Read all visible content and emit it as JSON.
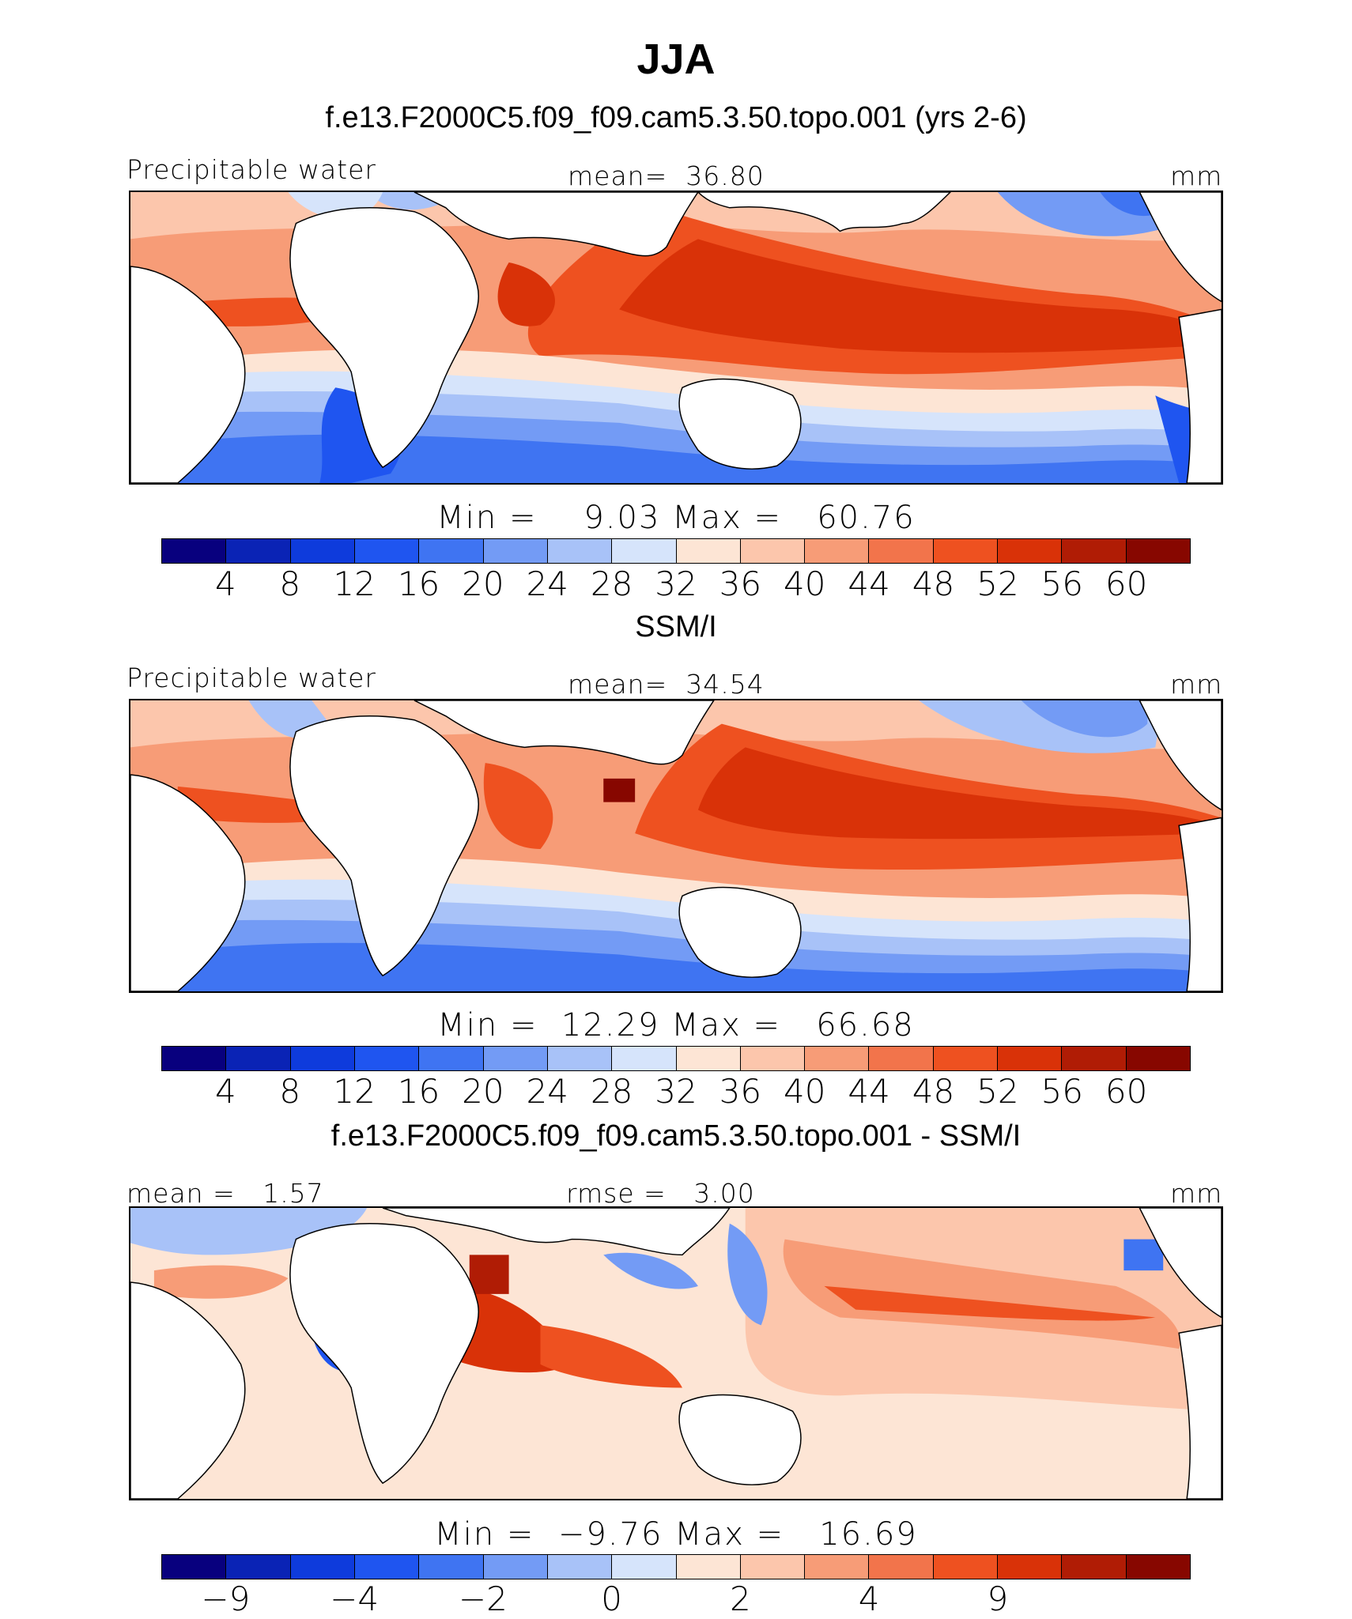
{
  "title": "JJA",
  "palette": [
    "#08007e",
    "#0a23b5",
    "#0e3bdc",
    "#1f55f0",
    "#3f74f2",
    "#739bf5",
    "#a8c2f8",
    "#d6e4fb",
    "#fde5d5",
    "#fcc6ac",
    "#f79c77",
    "#f2744b",
    "#ee5120",
    "#d93208",
    "#b01c05",
    "#870700"
  ],
  "panels": [
    {
      "id": "model",
      "subtitle": "f.e13.F2000C5.f09_f09.cam5.3.50.topo.001 (yrs 2-6)",
      "left_label": "Precipitable water",
      "center_label": "mean=  36.80",
      "right_label": "mm",
      "minmax": "Min =    9.03 Max =   60.76",
      "colorbar_ticks": [
        "4",
        "8",
        "12",
        "16",
        "20",
        "24",
        "28",
        "32",
        "36",
        "40",
        "44",
        "48",
        "52",
        "56",
        "60"
      ]
    },
    {
      "id": "obs",
      "subtitle": "SSM/I",
      "left_label": "Precipitable water",
      "center_label": "mean=  34.54",
      "right_label": "mm",
      "minmax": "Min =  12.29 Max =   66.68",
      "colorbar_ticks": [
        "4",
        "8",
        "12",
        "16",
        "20",
        "24",
        "28",
        "32",
        "36",
        "40",
        "44",
        "48",
        "52",
        "56",
        "60"
      ]
    },
    {
      "id": "diff",
      "subtitle": "f.e13.F2000C5.f09_f09.cam5.3.50.topo.001 - SSM/I",
      "left_label": "mean =   1.57",
      "center_label": "rmse =   3.00",
      "right_label": "mm",
      "minmax": "Min =  −9.76 Max =   16.69",
      "colorbar_ticks": [
        "−9",
        "",
        "−4",
        "",
        "−2",
        "",
        "0",
        "",
        "2",
        "",
        "4",
        "",
        "9"
      ]
    }
  ]
}
